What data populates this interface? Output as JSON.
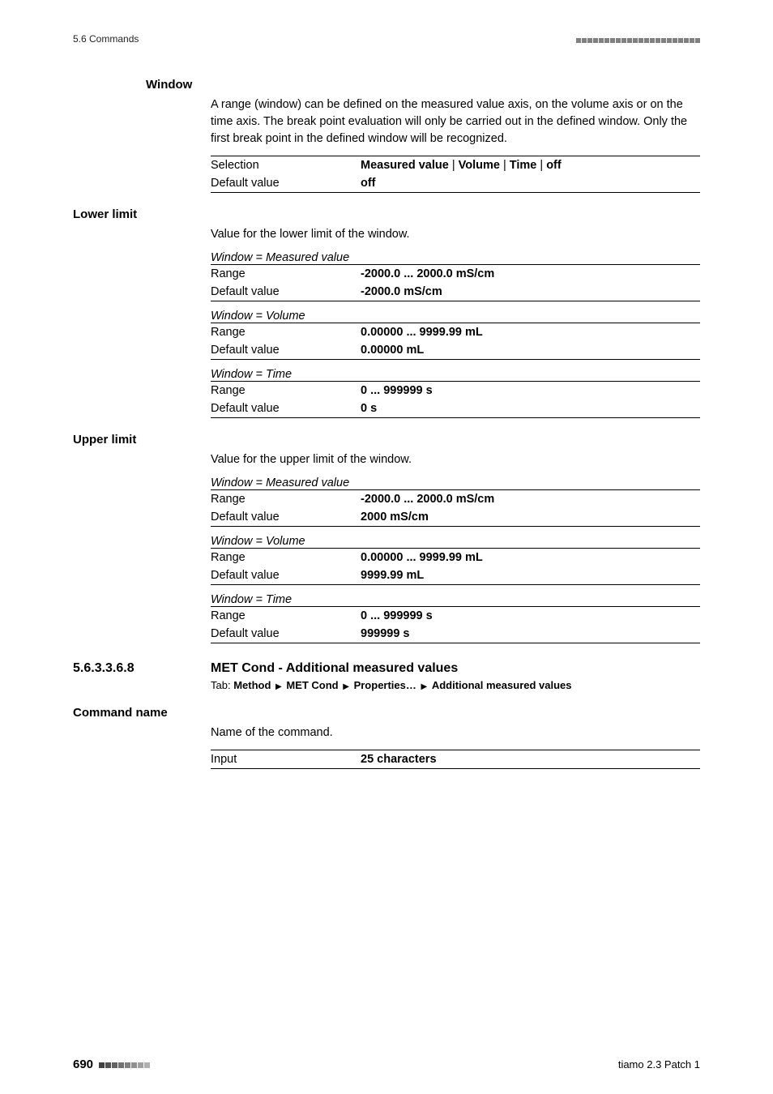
{
  "colors": {
    "text": "#000000",
    "muted": "#808080",
    "background": "#ffffff",
    "rule": "#000000"
  },
  "typography": {
    "body_fontsize_pt": 11,
    "label_fontsize_pt": 11,
    "section_fontsize_pt": 12,
    "runhead_fontsize_pt": 9
  },
  "runhead": {
    "left": "5.6 Commands",
    "decor_square_count": 22,
    "decor_square_color": "#808080"
  },
  "fields": {
    "window": {
      "label": "Window",
      "para": "A range (window) can be defined on the measured value axis, on the volume axis or on the time axis. The break point evaluation will only be carried out in the defined window. Only the first break point in the defined window will be recognized.",
      "rows": {
        "selection": {
          "k": "Selection",
          "v_parts": [
            "Measured value",
            "Volume",
            "Time",
            "off"
          ],
          "sep": " | "
        },
        "default": {
          "k": "Default value",
          "v": "off"
        }
      }
    },
    "lower_limit": {
      "label": "Lower limit",
      "para": "Value for the lower limit of the window.",
      "groups": [
        {
          "cond": "Window = Measured value",
          "range": {
            "k": "Range",
            "v": "-2000.0 ... 2000.0 mS/cm"
          },
          "default": {
            "k": "Default value",
            "v": "-2000.0 mS/cm"
          }
        },
        {
          "cond": "Window = Volume",
          "range": {
            "k": "Range",
            "v": "0.00000 ... 9999.99 mL"
          },
          "default": {
            "k": "Default value",
            "v": "0.00000 mL"
          }
        },
        {
          "cond": "Window = Time",
          "range": {
            "k": "Range",
            "v": "0 ... 999999 s"
          },
          "default": {
            "k": "Default value",
            "v": "0 s"
          }
        }
      ]
    },
    "upper_limit": {
      "label": "Upper limit",
      "para": "Value for the upper limit of the window.",
      "groups": [
        {
          "cond": "Window = Measured value",
          "range": {
            "k": "Range",
            "v": "-2000.0 ... 2000.0 mS/cm"
          },
          "default": {
            "k": "Default value",
            "v": "2000 mS/cm"
          }
        },
        {
          "cond": "Window = Volume",
          "range": {
            "k": "Range",
            "v": "0.00000 ... 9999.99 mL"
          },
          "default": {
            "k": "Default value",
            "v": "9999.99 mL"
          }
        },
        {
          "cond": "Window = Time",
          "range": {
            "k": "Range",
            "v": "0 ... 999999 s"
          },
          "default": {
            "k": "Default value",
            "v": "999999 s"
          }
        }
      ]
    }
  },
  "section": {
    "num": "5.6.3.3.6.8",
    "title": "MET Cond - Additional measured values",
    "tab_prefix": "Tab: ",
    "tab_parts": [
      "Method",
      "MET Cond",
      "Properties…",
      "Additional measured values"
    ]
  },
  "command_name": {
    "label": "Command name",
    "para": "Name of the command.",
    "row": {
      "k": "Input",
      "v": "25 characters"
    }
  },
  "footer": {
    "page": "690",
    "grad_colors": [
      "#404040",
      "#505050",
      "#606060",
      "#707070",
      "#808080",
      "#909090",
      "#a0a0a0",
      "#b0b0b0"
    ],
    "right": "tiamo 2.3 Patch 1"
  }
}
